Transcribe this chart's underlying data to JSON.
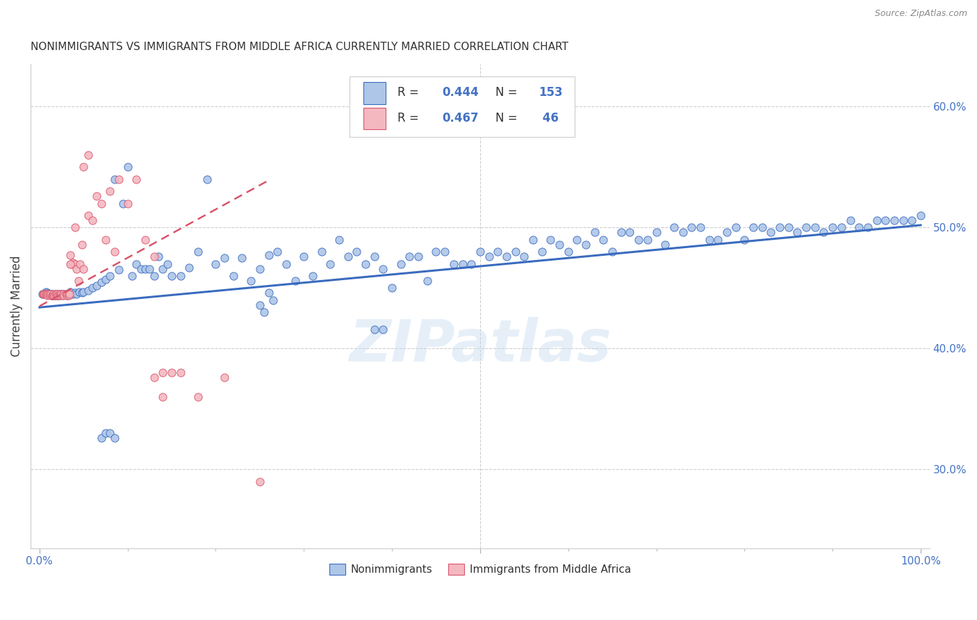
{
  "title": "NONIMMIGRANTS VS IMMIGRANTS FROM MIDDLE AFRICA CURRENTLY MARRIED CORRELATION CHART",
  "source": "Source: ZipAtlas.com",
  "ylabel": "Currently Married",
  "xlim": [
    -0.01,
    1.01
  ],
  "ylim": [
    0.235,
    0.635
  ],
  "ytick_labels_right": [
    "30.0%",
    "40.0%",
    "50.0%",
    "60.0%"
  ],
  "ytick_values_right": [
    0.3,
    0.4,
    0.5,
    0.6
  ],
  "color_nonimm": "#aec6e8",
  "color_imm": "#f4b8c1",
  "color_nonimm_line": "#3a6bbf",
  "color_imm_line": "#d9546a",
  "color_blue_text": "#4472c4",
  "background_color": "#ffffff",
  "watermark": "ZIPatlas",
  "nonimm_x": [
    0.003,
    0.005,
    0.007,
    0.008,
    0.009,
    0.01,
    0.011,
    0.012,
    0.013,
    0.014,
    0.015,
    0.016,
    0.017,
    0.018,
    0.019,
    0.02,
    0.021,
    0.022,
    0.023,
    0.025,
    0.027,
    0.03,
    0.032,
    0.035,
    0.038,
    0.04,
    0.042,
    0.045,
    0.048,
    0.05,
    0.055,
    0.06,
    0.065,
    0.07,
    0.075,
    0.08,
    0.085,
    0.09,
    0.095,
    0.1,
    0.105,
    0.11,
    0.115,
    0.12,
    0.125,
    0.13,
    0.135,
    0.14,
    0.145,
    0.15,
    0.16,
    0.17,
    0.18,
    0.19,
    0.2,
    0.21,
    0.22,
    0.23,
    0.24,
    0.25,
    0.26,
    0.27,
    0.28,
    0.29,
    0.3,
    0.31,
    0.32,
    0.33,
    0.34,
    0.35,
    0.36,
    0.37,
    0.38,
    0.39,
    0.4,
    0.41,
    0.42,
    0.43,
    0.44,
    0.45,
    0.46,
    0.47,
    0.48,
    0.49,
    0.5,
    0.51,
    0.52,
    0.53,
    0.54,
    0.55,
    0.56,
    0.57,
    0.58,
    0.59,
    0.6,
    0.61,
    0.62,
    0.63,
    0.64,
    0.65,
    0.66,
    0.67,
    0.68,
    0.69,
    0.7,
    0.71,
    0.72,
    0.73,
    0.74,
    0.75,
    0.76,
    0.77,
    0.78,
    0.79,
    0.8,
    0.81,
    0.82,
    0.83,
    0.84,
    0.85,
    0.86,
    0.87,
    0.88,
    0.89,
    0.9,
    0.91,
    0.92,
    0.93,
    0.94,
    0.95,
    0.96,
    0.97,
    0.98,
    0.99,
    1.0,
    0.25,
    0.255,
    0.26,
    0.265,
    0.38,
    0.39,
    0.07,
    0.075,
    0.08,
    0.085
  ],
  "nonimm_y": [
    0.445,
    0.445,
    0.447,
    0.445,
    0.446,
    0.445,
    0.445,
    0.445,
    0.445,
    0.444,
    0.445,
    0.444,
    0.444,
    0.445,
    0.444,
    0.445,
    0.444,
    0.444,
    0.445,
    0.445,
    0.445,
    0.445,
    0.444,
    0.447,
    0.445,
    0.446,
    0.445,
    0.447,
    0.446,
    0.447,
    0.448,
    0.45,
    0.452,
    0.455,
    0.457,
    0.46,
    0.54,
    0.465,
    0.52,
    0.55,
    0.46,
    0.47,
    0.466,
    0.466,
    0.466,
    0.46,
    0.476,
    0.466,
    0.47,
    0.46,
    0.46,
    0.467,
    0.48,
    0.54,
    0.47,
    0.475,
    0.46,
    0.475,
    0.456,
    0.466,
    0.477,
    0.48,
    0.47,
    0.456,
    0.476,
    0.46,
    0.48,
    0.47,
    0.49,
    0.476,
    0.48,
    0.47,
    0.476,
    0.466,
    0.45,
    0.47,
    0.476,
    0.476,
    0.456,
    0.48,
    0.48,
    0.47,
    0.47,
    0.47,
    0.48,
    0.476,
    0.48,
    0.476,
    0.48,
    0.476,
    0.49,
    0.48,
    0.49,
    0.486,
    0.48,
    0.49,
    0.486,
    0.496,
    0.49,
    0.48,
    0.496,
    0.496,
    0.49,
    0.49,
    0.496,
    0.486,
    0.5,
    0.496,
    0.5,
    0.5,
    0.49,
    0.49,
    0.496,
    0.5,
    0.49,
    0.5,
    0.5,
    0.496,
    0.5,
    0.5,
    0.496,
    0.5,
    0.5,
    0.496,
    0.5,
    0.5,
    0.506,
    0.5,
    0.5,
    0.506,
    0.506,
    0.506,
    0.506,
    0.506,
    0.51,
    0.436,
    0.43,
    0.446,
    0.44,
    0.416,
    0.416,
    0.326,
    0.33,
    0.33,
    0.326
  ],
  "imm_x": [
    0.004,
    0.005,
    0.006,
    0.007,
    0.008,
    0.009,
    0.01,
    0.011,
    0.012,
    0.013,
    0.014,
    0.015,
    0.015,
    0.016,
    0.017,
    0.018,
    0.019,
    0.02,
    0.021,
    0.022,
    0.023,
    0.024,
    0.025,
    0.026,
    0.027,
    0.028,
    0.03,
    0.031,
    0.032,
    0.033,
    0.034,
    0.035,
    0.036,
    0.038,
    0.04,
    0.042,
    0.044,
    0.046,
    0.048,
    0.05,
    0.055,
    0.06,
    0.065,
    0.07,
    0.075,
    0.08,
    0.085,
    0.09,
    0.1,
    0.11,
    0.12,
    0.13,
    0.14,
    0.15,
    0.16,
    0.18,
    0.21,
    0.25,
    0.05,
    0.055,
    0.035,
    0.04,
    0.13,
    0.14
  ],
  "imm_y": [
    0.445,
    0.445,
    0.445,
    0.445,
    0.445,
    0.444,
    0.445,
    0.445,
    0.444,
    0.445,
    0.444,
    0.444,
    0.444,
    0.445,
    0.444,
    0.445,
    0.444,
    0.445,
    0.444,
    0.444,
    0.445,
    0.444,
    0.445,
    0.444,
    0.445,
    0.444,
    0.445,
    0.444,
    0.445,
    0.444,
    0.445,
    0.477,
    0.47,
    0.471,
    0.47,
    0.466,
    0.456,
    0.47,
    0.486,
    0.466,
    0.51,
    0.506,
    0.526,
    0.52,
    0.49,
    0.53,
    0.48,
    0.54,
    0.52,
    0.54,
    0.49,
    0.476,
    0.38,
    0.38,
    0.38,
    0.36,
    0.376,
    0.29,
    0.55,
    0.56,
    0.47,
    0.5,
    0.376,
    0.36
  ]
}
